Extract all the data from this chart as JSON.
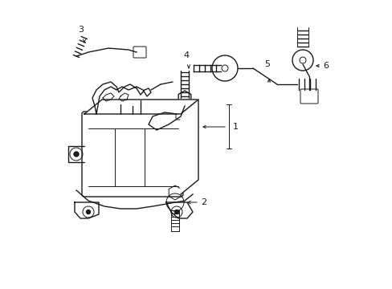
{
  "bg_color": "#ffffff",
  "line_color": "#1a1a1a",
  "lw": 1.0,
  "tlw": 0.7,
  "fig_width": 4.89,
  "fig_height": 3.6,
  "dpi": 100
}
